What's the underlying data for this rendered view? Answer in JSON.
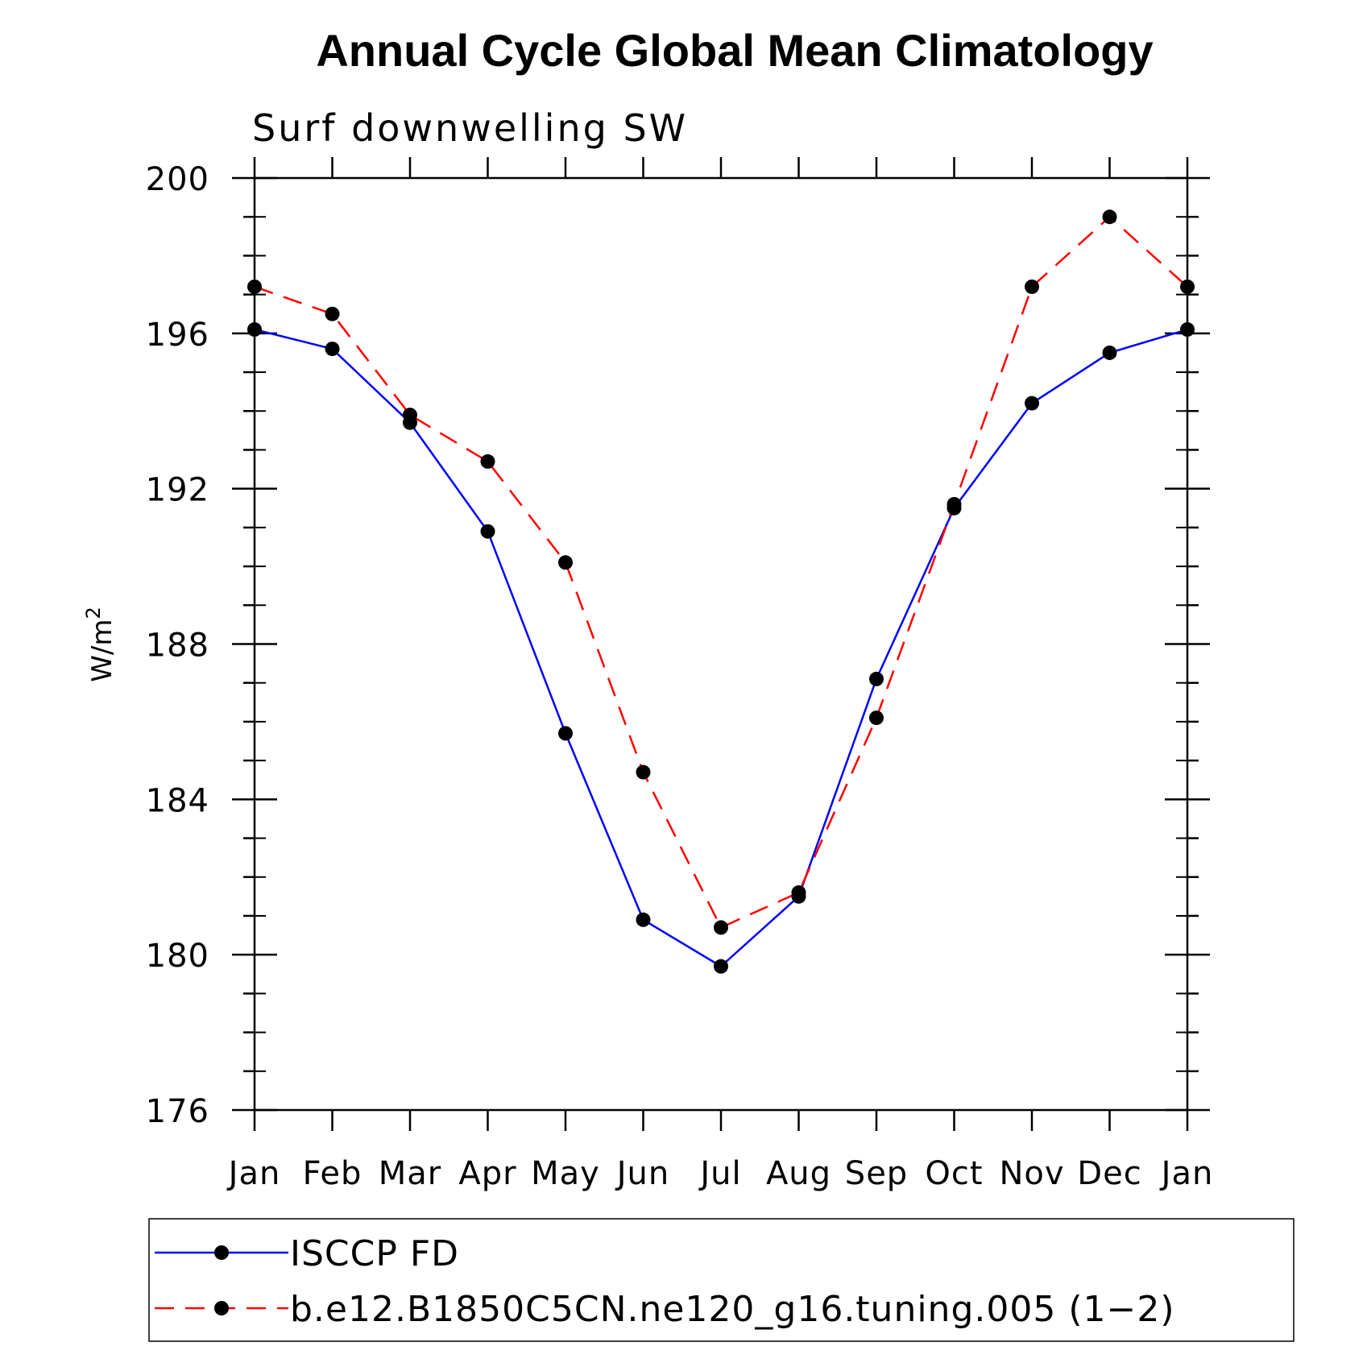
{
  "chart_data": {
    "type": "line",
    "title": "Annual Cycle Global Mean Climatology",
    "subtitle": "Surf downwelling SW",
    "ylabel": "W/m",
    "ylabel_superscript": "2",
    "xlabel": "",
    "categories": [
      "Jan",
      "Feb",
      "Mar",
      "Apr",
      "May",
      "Jun",
      "Jul",
      "Aug",
      "Sep",
      "Oct",
      "Nov",
      "Dec",
      "Jan"
    ],
    "ylim": [
      176,
      200
    ],
    "yticks": [
      176,
      180,
      184,
      188,
      192,
      196,
      200
    ],
    "grid": false,
    "legend_position": "bottom",
    "series": [
      {
        "name": "ISCCP FD",
        "color": "#0000ff",
        "style": "solid",
        "values": [
          196.1,
          195.6,
          193.7,
          190.9,
          185.7,
          180.9,
          179.7,
          181.5,
          187.1,
          191.5,
          194.2,
          195.5,
          196.1
        ]
      },
      {
        "name": "b.e12.B1850C5CN.ne120_g16.tuning.005 (1−2)",
        "color": "#ff0000",
        "style": "dashed",
        "values": [
          197.2,
          196.5,
          193.9,
          192.7,
          190.1,
          184.7,
          180.7,
          181.6,
          186.1,
          191.6,
          197.2,
          199.0,
          197.2
        ]
      }
    ]
  }
}
